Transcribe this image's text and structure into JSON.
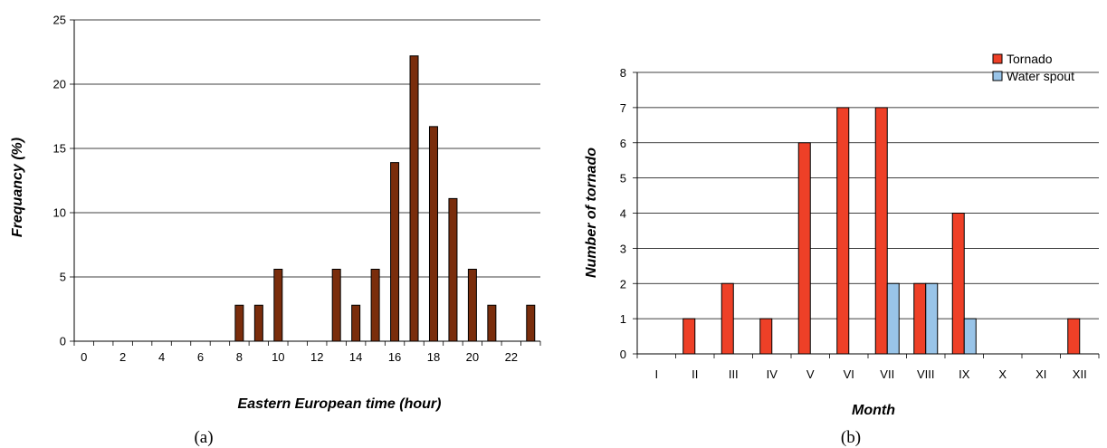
{
  "chart_data": [
    {
      "type": "bar",
      "panel_label": "(a)",
      "xlabel": "Eastern European time (hour)",
      "ylabel": "Frequancy (%)",
      "ylim": [
        0,
        25
      ],
      "yticks": [
        "0",
        "5",
        "10",
        "15",
        "20",
        "25"
      ],
      "xticks": [
        "0",
        "2",
        "4",
        "6",
        "8",
        "10",
        "12",
        "14",
        "16",
        "18",
        "20",
        "22"
      ],
      "x": [
        0,
        1,
        2,
        3,
        4,
        5,
        6,
        7,
        8,
        9,
        10,
        11,
        12,
        13,
        14,
        15,
        16,
        17,
        18,
        19,
        20,
        21,
        22,
        23
      ],
      "values": [
        0,
        0,
        0,
        0,
        0,
        0,
        0,
        0,
        2.8,
        2.8,
        5.6,
        0,
        0,
        5.6,
        2.8,
        5.6,
        13.9,
        22.2,
        16.7,
        11.1,
        5.6,
        2.8,
        0,
        2.8
      ],
      "grid": true,
      "colors": {
        "bar": "#7a2d0c"
      }
    },
    {
      "type": "bar",
      "panel_label": "(b)",
      "xlabel": "Month",
      "ylabel": "Number of tornado",
      "ylim": [
        0,
        8
      ],
      "yticks": [
        "0",
        "1",
        "2",
        "3",
        "4",
        "5",
        "6",
        "7",
        "8"
      ],
      "categories": [
        "I",
        "II",
        "III",
        "IV",
        "V",
        "VI",
        "VII",
        "VIII",
        "IX",
        "X",
        "XI",
        "XII"
      ],
      "series": [
        {
          "name": "Tornado",
          "values": [
            0,
            1,
            2,
            1,
            6,
            7,
            7,
            2,
            4,
            0,
            0,
            1
          ],
          "color": "#ee4027"
        },
        {
          "name": "Water spout",
          "values": [
            0,
            0,
            0,
            0,
            0,
            0,
            2,
            2,
            1,
            0,
            0,
            0
          ],
          "color": "#99c4e8"
        }
      ],
      "legend": "top-right",
      "grid": true
    }
  ]
}
